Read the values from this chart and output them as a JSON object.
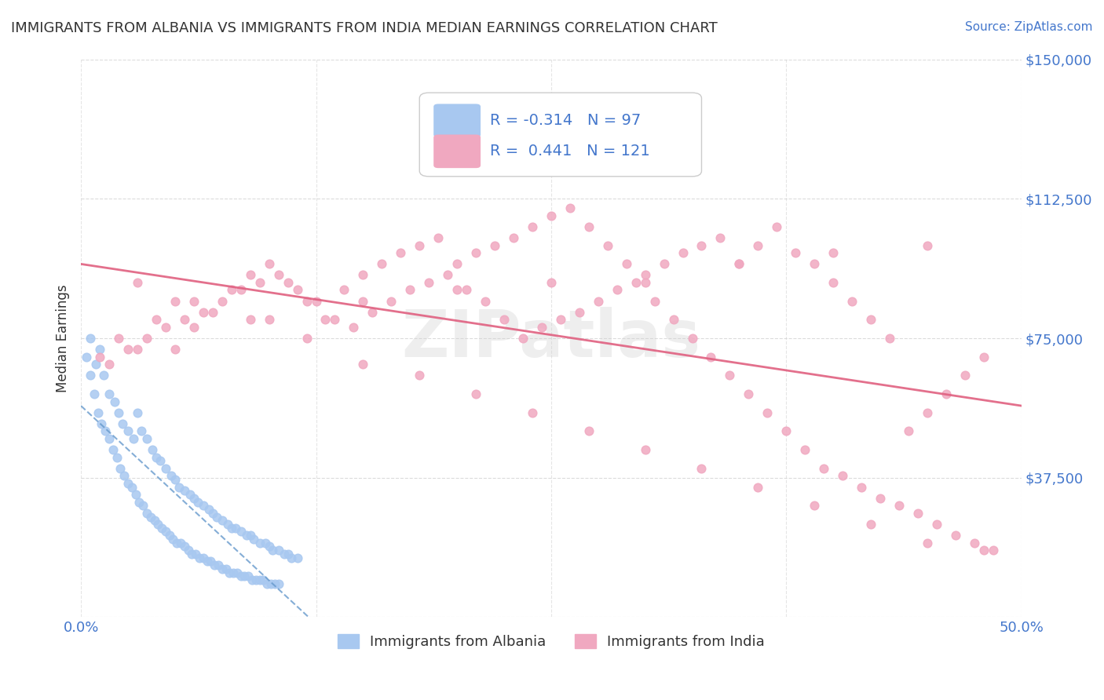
{
  "title": "IMMIGRANTS FROM ALBANIA VS IMMIGRANTS FROM INDIA MEDIAN EARNINGS CORRELATION CHART",
  "source": "Source: ZipAtlas.com",
  "ylabel": "Median Earnings",
  "xlabel": "",
  "xlim": [
    0.0,
    50.0
  ],
  "ylim": [
    0,
    150000
  ],
  "yticks": [
    0,
    37500,
    75000,
    112500,
    150000
  ],
  "ytick_labels": [
    "",
    "$37,500",
    "$75,000",
    "$112,500",
    "$150,000"
  ],
  "xticks": [
    0.0,
    12.5,
    25.0,
    37.5,
    50.0
  ],
  "xtick_labels": [
    "0.0%",
    "",
    "",
    "",
    "50.0%"
  ],
  "albania_R": -0.314,
  "albania_N": 97,
  "india_R": 0.441,
  "india_N": 121,
  "albania_color": "#a8c8f0",
  "india_color": "#f0a8c0",
  "albania_line_color": "#6699cc",
  "india_line_color": "#e06080",
  "background_color": "#ffffff",
  "grid_color": "#cccccc",
  "watermark_text": "ZIPatlas",
  "watermark_color": "#d0d0d0",
  "title_color": "#333333",
  "axis_label_color": "#333333",
  "tick_color": "#4477cc",
  "legend_r_color": "#4477cc",
  "legend_n_color": "#4477cc",
  "albania_scatter_x": [
    0.5,
    0.8,
    1.0,
    1.2,
    1.5,
    1.8,
    2.0,
    2.2,
    2.5,
    2.8,
    3.0,
    3.2,
    3.5,
    3.8,
    4.0,
    4.2,
    4.5,
    4.8,
    5.0,
    5.2,
    5.5,
    5.8,
    6.0,
    6.2,
    6.5,
    6.8,
    7.0,
    7.2,
    7.5,
    7.8,
    8.0,
    8.2,
    8.5,
    8.8,
    9.0,
    9.2,
    9.5,
    9.8,
    10.0,
    10.2,
    10.5,
    10.8,
    11.0,
    11.2,
    11.5,
    0.3,
    0.5,
    0.7,
    0.9,
    1.1,
    1.3,
    1.5,
    1.7,
    1.9,
    2.1,
    2.3,
    2.5,
    2.7,
    2.9,
    3.1,
    3.3,
    3.5,
    3.7,
    3.9,
    4.1,
    4.3,
    4.5,
    4.7,
    4.9,
    5.1,
    5.3,
    5.5,
    5.7,
    5.9,
    6.1,
    6.3,
    6.5,
    6.7,
    6.9,
    7.1,
    7.3,
    7.5,
    7.7,
    7.9,
    8.1,
    8.3,
    8.5,
    8.7,
    8.9,
    9.1,
    9.3,
    9.5,
    9.7,
    9.9,
    10.1,
    10.3,
    10.5
  ],
  "albania_scatter_y": [
    75000,
    68000,
    72000,
    65000,
    60000,
    58000,
    55000,
    52000,
    50000,
    48000,
    55000,
    50000,
    48000,
    45000,
    43000,
    42000,
    40000,
    38000,
    37000,
    35000,
    34000,
    33000,
    32000,
    31000,
    30000,
    29000,
    28000,
    27000,
    26000,
    25000,
    24000,
    24000,
    23000,
    22000,
    22000,
    21000,
    20000,
    20000,
    19000,
    18000,
    18000,
    17000,
    17000,
    16000,
    16000,
    70000,
    65000,
    60000,
    55000,
    52000,
    50000,
    48000,
    45000,
    43000,
    40000,
    38000,
    36000,
    35000,
    33000,
    31000,
    30000,
    28000,
    27000,
    26000,
    25000,
    24000,
    23000,
    22000,
    21000,
    20000,
    20000,
    19000,
    18000,
    17000,
    17000,
    16000,
    16000,
    15000,
    15000,
    14000,
    14000,
    13000,
    13000,
    12000,
    12000,
    12000,
    11000,
    11000,
    11000,
    10000,
    10000,
    10000,
    10000,
    9000,
    9000,
    9000,
    9000
  ],
  "india_scatter_x": [
    1.0,
    2.0,
    3.0,
    4.0,
    5.0,
    6.0,
    7.0,
    8.0,
    9.0,
    10.0,
    11.0,
    12.0,
    13.0,
    14.0,
    15.0,
    16.0,
    17.0,
    18.0,
    19.0,
    20.0,
    21.0,
    22.0,
    23.0,
    24.0,
    25.0,
    26.0,
    27.0,
    28.0,
    29.0,
    30.0,
    31.0,
    32.0,
    33.0,
    34.0,
    35.0,
    36.0,
    37.0,
    38.0,
    39.0,
    40.0,
    41.0,
    42.0,
    43.0,
    44.0,
    45.0,
    46.0,
    47.0,
    48.0,
    1.5,
    2.5,
    3.5,
    4.5,
    5.5,
    6.5,
    7.5,
    8.5,
    9.5,
    10.5,
    11.5,
    12.5,
    13.5,
    14.5,
    15.5,
    16.5,
    17.5,
    18.5,
    19.5,
    20.5,
    21.5,
    22.5,
    23.5,
    24.5,
    25.5,
    26.5,
    27.5,
    28.5,
    29.5,
    30.5,
    31.5,
    32.5,
    33.5,
    34.5,
    35.5,
    36.5,
    37.5,
    38.5,
    39.5,
    40.5,
    41.5,
    42.5,
    43.5,
    44.5,
    45.5,
    46.5,
    47.5,
    48.5,
    3.0,
    6.0,
    9.0,
    12.0,
    15.0,
    18.0,
    21.0,
    24.0,
    27.0,
    30.0,
    33.0,
    36.0,
    39.0,
    42.0,
    45.0,
    48.0,
    5.0,
    10.0,
    15.0,
    20.0,
    25.0,
    30.0,
    35.0,
    40.0,
    45.0
  ],
  "india_scatter_y": [
    70000,
    75000,
    72000,
    80000,
    85000,
    78000,
    82000,
    88000,
    92000,
    95000,
    90000,
    85000,
    80000,
    88000,
    92000,
    95000,
    98000,
    100000,
    102000,
    95000,
    98000,
    100000,
    102000,
    105000,
    108000,
    110000,
    105000,
    100000,
    95000,
    90000,
    95000,
    98000,
    100000,
    102000,
    95000,
    100000,
    105000,
    98000,
    95000,
    90000,
    85000,
    80000,
    75000,
    50000,
    55000,
    60000,
    65000,
    70000,
    68000,
    72000,
    75000,
    78000,
    80000,
    82000,
    85000,
    88000,
    90000,
    92000,
    88000,
    85000,
    80000,
    78000,
    82000,
    85000,
    88000,
    90000,
    92000,
    88000,
    85000,
    80000,
    75000,
    78000,
    80000,
    82000,
    85000,
    88000,
    90000,
    85000,
    80000,
    75000,
    70000,
    65000,
    60000,
    55000,
    50000,
    45000,
    40000,
    38000,
    35000,
    32000,
    30000,
    28000,
    25000,
    22000,
    20000,
    18000,
    90000,
    85000,
    80000,
    75000,
    68000,
    65000,
    60000,
    55000,
    50000,
    45000,
    40000,
    35000,
    30000,
    25000,
    20000,
    18000,
    72000,
    80000,
    85000,
    88000,
    90000,
    92000,
    95000,
    98000,
    100000
  ]
}
